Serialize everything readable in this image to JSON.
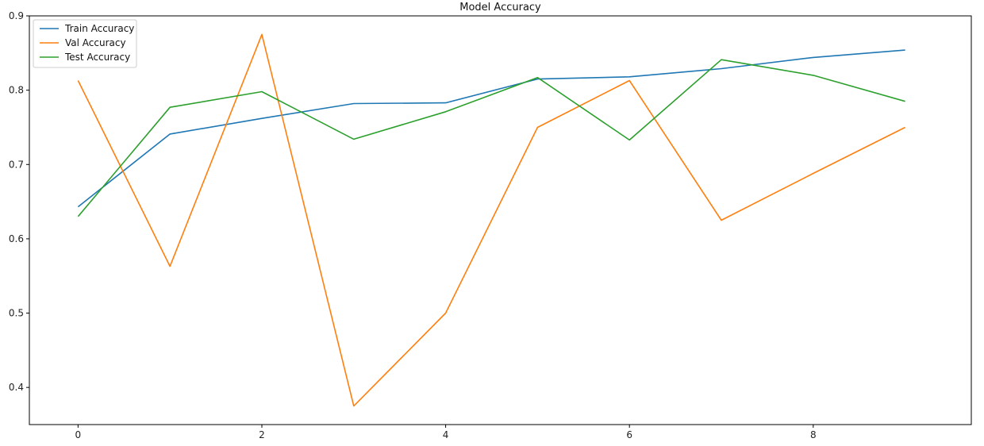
{
  "chart_data": {
    "type": "line",
    "title": "Model Accuracy",
    "xlabel": "",
    "ylabel": "",
    "x": [
      0,
      1,
      2,
      3,
      4,
      5,
      6,
      7,
      8,
      9
    ],
    "xlim": [
      -0.53,
      9.72
    ],
    "ylim": [
      0.35,
      0.9
    ],
    "xticks": [
      0,
      2,
      4,
      6,
      8
    ],
    "xtick_labels": [
      "0",
      "2",
      "4",
      "6",
      "8"
    ],
    "yticks": [
      0.4,
      0.5,
      0.6,
      0.7,
      0.8,
      0.9
    ],
    "ytick_labels": [
      "0.4",
      "0.5",
      "0.6",
      "0.7",
      "0.8",
      "0.9"
    ],
    "grid": false,
    "legend_position": "top-left",
    "series": [
      {
        "name": "Train Accuracy",
        "color": "#1f77b4",
        "values": [
          0.643,
          0.741,
          0.762,
          0.782,
          0.783,
          0.815,
          0.818,
          0.829,
          0.844,
          0.854
        ]
      },
      {
        "name": "Val Accuracy",
        "color": "#ff7f0e",
        "values": [
          0.813,
          0.563,
          0.875,
          0.375,
          0.5,
          0.75,
          0.813,
          0.625,
          0.688,
          0.75
        ]
      },
      {
        "name": "Test Accuracy",
        "color": "#2ca02c",
        "values": [
          0.63,
          0.777,
          0.798,
          0.734,
          0.771,
          0.817,
          0.733,
          0.841,
          0.82,
          0.785
        ]
      }
    ]
  }
}
